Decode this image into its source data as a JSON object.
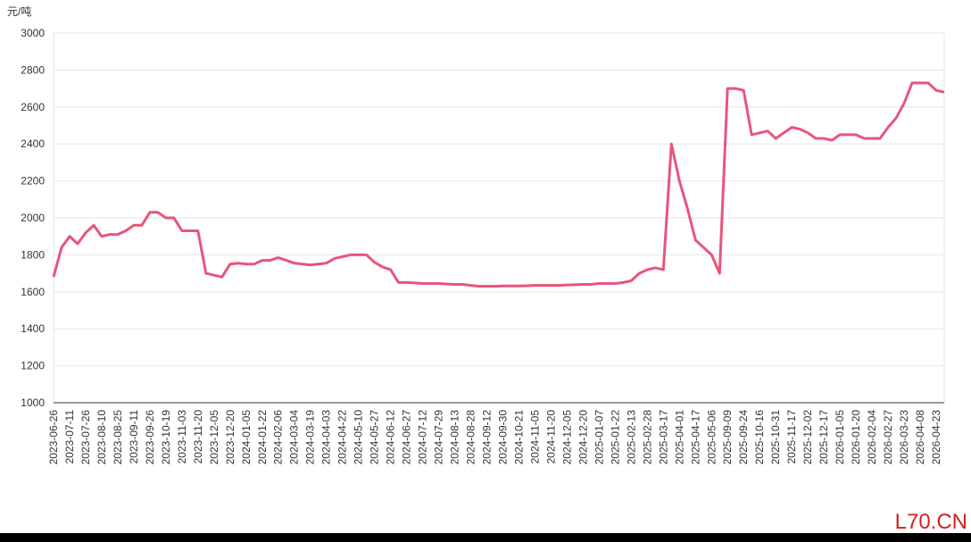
{
  "chart_data": {
    "type": "line",
    "y_axis_label": "元/吨",
    "categories": [
      "2023-06-26",
      null,
      "2023-07-11",
      null,
      "2023-07-26",
      null,
      "2023-08-10",
      null,
      "2023-08-25",
      null,
      "2023-09-11",
      null,
      "2023-09-26",
      null,
      "2023-10-19",
      null,
      "2023-11-03",
      null,
      "2023-11-20",
      null,
      "2023-12-05",
      null,
      "2023-12-20",
      null,
      "2024-01-05",
      null,
      "2024-01-22",
      null,
      "2024-02-06",
      null,
      "2024-03-04",
      null,
      "2024-03-19",
      null,
      "2024-04-03",
      null,
      "2024-04-22",
      null,
      "2024-05-10",
      null,
      "2024-05-27",
      null,
      "2024-06-12",
      null,
      "2024-06-27",
      null,
      "2024-07-12",
      null,
      "2024-07-29",
      null,
      "2024-08-13",
      null,
      "2024-08-28",
      null,
      "2024-09-12",
      null,
      "2024-09-30",
      null,
      "2024-10-21",
      null,
      "2024-11-05",
      null,
      "2024-11-20",
      null,
      "2024-12-05",
      null,
      "2024-12-20",
      null,
      "2025-01-07",
      null,
      "2025-01-22",
      null,
      "2025-02-13",
      null,
      "2025-02-28",
      null,
      "2025-03-17",
      null,
      "2025-04-01",
      null,
      "2025-04-17",
      null,
      "2025-05-06",
      null,
      "2025-09-09",
      null,
      "2025-09-24",
      null,
      "2025-10-16",
      null,
      "2025-10-31",
      null,
      "2025-11-17",
      null,
      "2025-12-02",
      null,
      "2025-12-17",
      null,
      "2026-01-05",
      null,
      "2026-01-20",
      null,
      "2026-02-04",
      null,
      "2026-02-27",
      null,
      "2026-03-23",
      null,
      "2026-04-08",
      null,
      "2026-04-23",
      null
    ],
    "series": [
      {
        "color": "#e8557a",
        "values": [
          1680,
          1840,
          1900,
          1860,
          1920,
          1960,
          1900,
          1910,
          1910,
          1930,
          1960,
          1960,
          2030,
          2030,
          2000,
          2000,
          1930,
          1930,
          1930,
          1700,
          1690,
          1680,
          1750,
          1755,
          1750,
          1750,
          1770,
          1770,
          1785,
          1770,
          1755,
          1750,
          1745,
          1750,
          1755,
          1780,
          1790,
          1800,
          1800,
          1800,
          1760,
          1735,
          1720,
          1650,
          1650,
          1648,
          1645,
          1645,
          1645,
          1642,
          1640,
          1640,
          1635,
          1630,
          1630,
          1630,
          1632,
          1632,
          1632,
          1633,
          1635,
          1635,
          1635,
          1635,
          1637,
          1638,
          1640,
          1640,
          1645,
          1645,
          1645,
          1650,
          1660,
          1700,
          1720,
          1730,
          1720,
          2400,
          2200,
          2050,
          1880,
          1840,
          1800,
          1700,
          2700,
          2700,
          2690,
          2450,
          2460,
          2470,
          2430,
          2460,
          2490,
          2480,
          2460,
          2430,
          2430,
          2420,
          2450,
          2450,
          2450,
          2430,
          2430,
          2430,
          2490,
          2540,
          2620,
          2730,
          2730,
          2730,
          2690,
          2680
        ]
      }
    ],
    "ylim": [
      1000,
      3000
    ],
    "yticks": [
      1000,
      1200,
      1400,
      1600,
      1800,
      2000,
      2200,
      2400,
      2600,
      2800,
      3000
    ],
    "grid": true
  },
  "watermark": "L70.CN"
}
